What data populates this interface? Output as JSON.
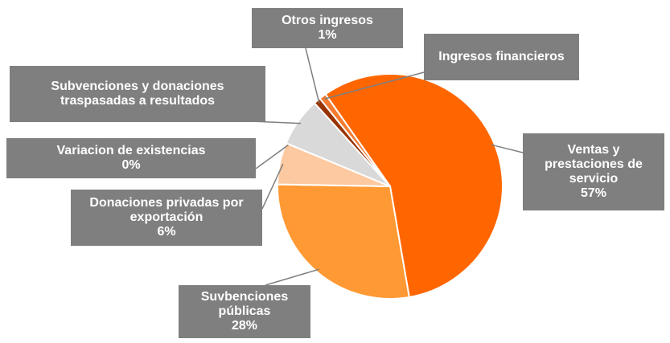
{
  "chart_data": {
    "type": "pie",
    "categories": [
      "Ventas y prestaciones de servicio",
      "Suvbenciones públicas",
      "Donaciones privadas por exportación",
      "Variacion de existencias",
      "Subvenciones y donaciones traspasadas a resultados",
      "Otros ingresos",
      "Ingresos financieros"
    ],
    "values": [
      57,
      28,
      6,
      0,
      7,
      1,
      1
    ],
    "value_labels": [
      "57%",
      "28%",
      "6%",
      "0%",
      null,
      "1%",
      null
    ],
    "colors": [
      "#ff6600",
      "#ff9933",
      "#fcc9a0",
      "#e0e0e0",
      "#d9d9d9",
      "#993300",
      "#f47b30"
    ]
  }
}
